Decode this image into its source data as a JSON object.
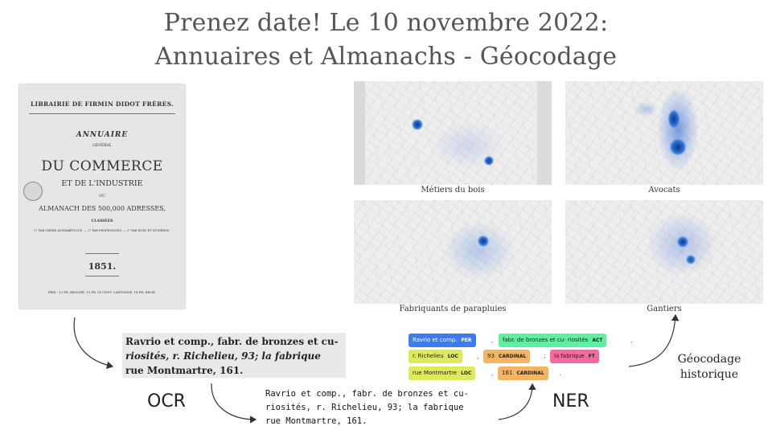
{
  "title": {
    "line1": "Prenez date! Le 10 novembre 2022:",
    "line2": "Annuaires et Almanachs - Géocodage"
  },
  "cover": {
    "publisher": "LIBRAIRIE DE FIRMIN DIDOT FRÈRES.",
    "annuaire": "ANNUAIRE",
    "general": "GÉNÉRAL",
    "commerce": "DU COMMERCE",
    "industrie": "ET DE L'INDUSTRIE",
    "ou": "OU",
    "almanach": "ALMANACH DES 500,000 ADRESSES,",
    "classees": "CLASSÉES",
    "classement": "1° PAR ORDRE ALPHABÉTIQUE. — 2° PAR PROFESSIONS. — 3° PAR RUES ET NUMÉROS.",
    "year": "1851.",
    "prix": "PRIX : 12 FR. BROCHÉ, 13 FR. 50 CENT. CARTONNÉ, 14 FR. RELIÉ."
  },
  "maps": [
    {
      "caption": "Métiers du bois"
    },
    {
      "caption": "Avocats"
    },
    {
      "caption": "Fabriquants de parapluies"
    },
    {
      "caption": "Gantiers"
    }
  ],
  "ocr": {
    "label": "OCR",
    "scan_line1": "Ravrio et comp., fabr. de bronzes et cu-",
    "scan_line2": "riosités, r. Richelieu, 93; la fabrique",
    "scan_line3": "rue Montmartre, 161.",
    "text_line1": "Ravrio et comp., fabr. de bronzes et cu-",
    "text_line2": "riosités, r. Richelieu, 93; la fabrique",
    "text_line3": "rue Montmartre, 161."
  },
  "ner": {
    "label": "NER",
    "entities": [
      {
        "text": "Ravrio et comp.",
        "tag": "PER",
        "color": "#3d7cf0"
      },
      {
        "text": "fabr. de bronzes et cu- riosités",
        "tag": "ACT",
        "color": "#5df0a0"
      },
      {
        "text": "r. Richelieu",
        "tag": "LOC",
        "color": "#dcea5c"
      },
      {
        "text": "93",
        "tag": "CARDINAL",
        "color": "#f5b461"
      },
      {
        "text": "la fabrique",
        "tag": "FT",
        "color": "#f26aa0"
      },
      {
        "text": "rue Montmartre",
        "tag": "LOC",
        "color": "#dcea5c"
      },
      {
        "text": "161",
        "tag": "CARDINAL",
        "color": "#f5b461"
      }
    ],
    "sep_comma": ",",
    "sep_semicolon": ";",
    "sep_period": "."
  },
  "geocoding": {
    "line1": "Géocodage",
    "line2": "historique"
  }
}
